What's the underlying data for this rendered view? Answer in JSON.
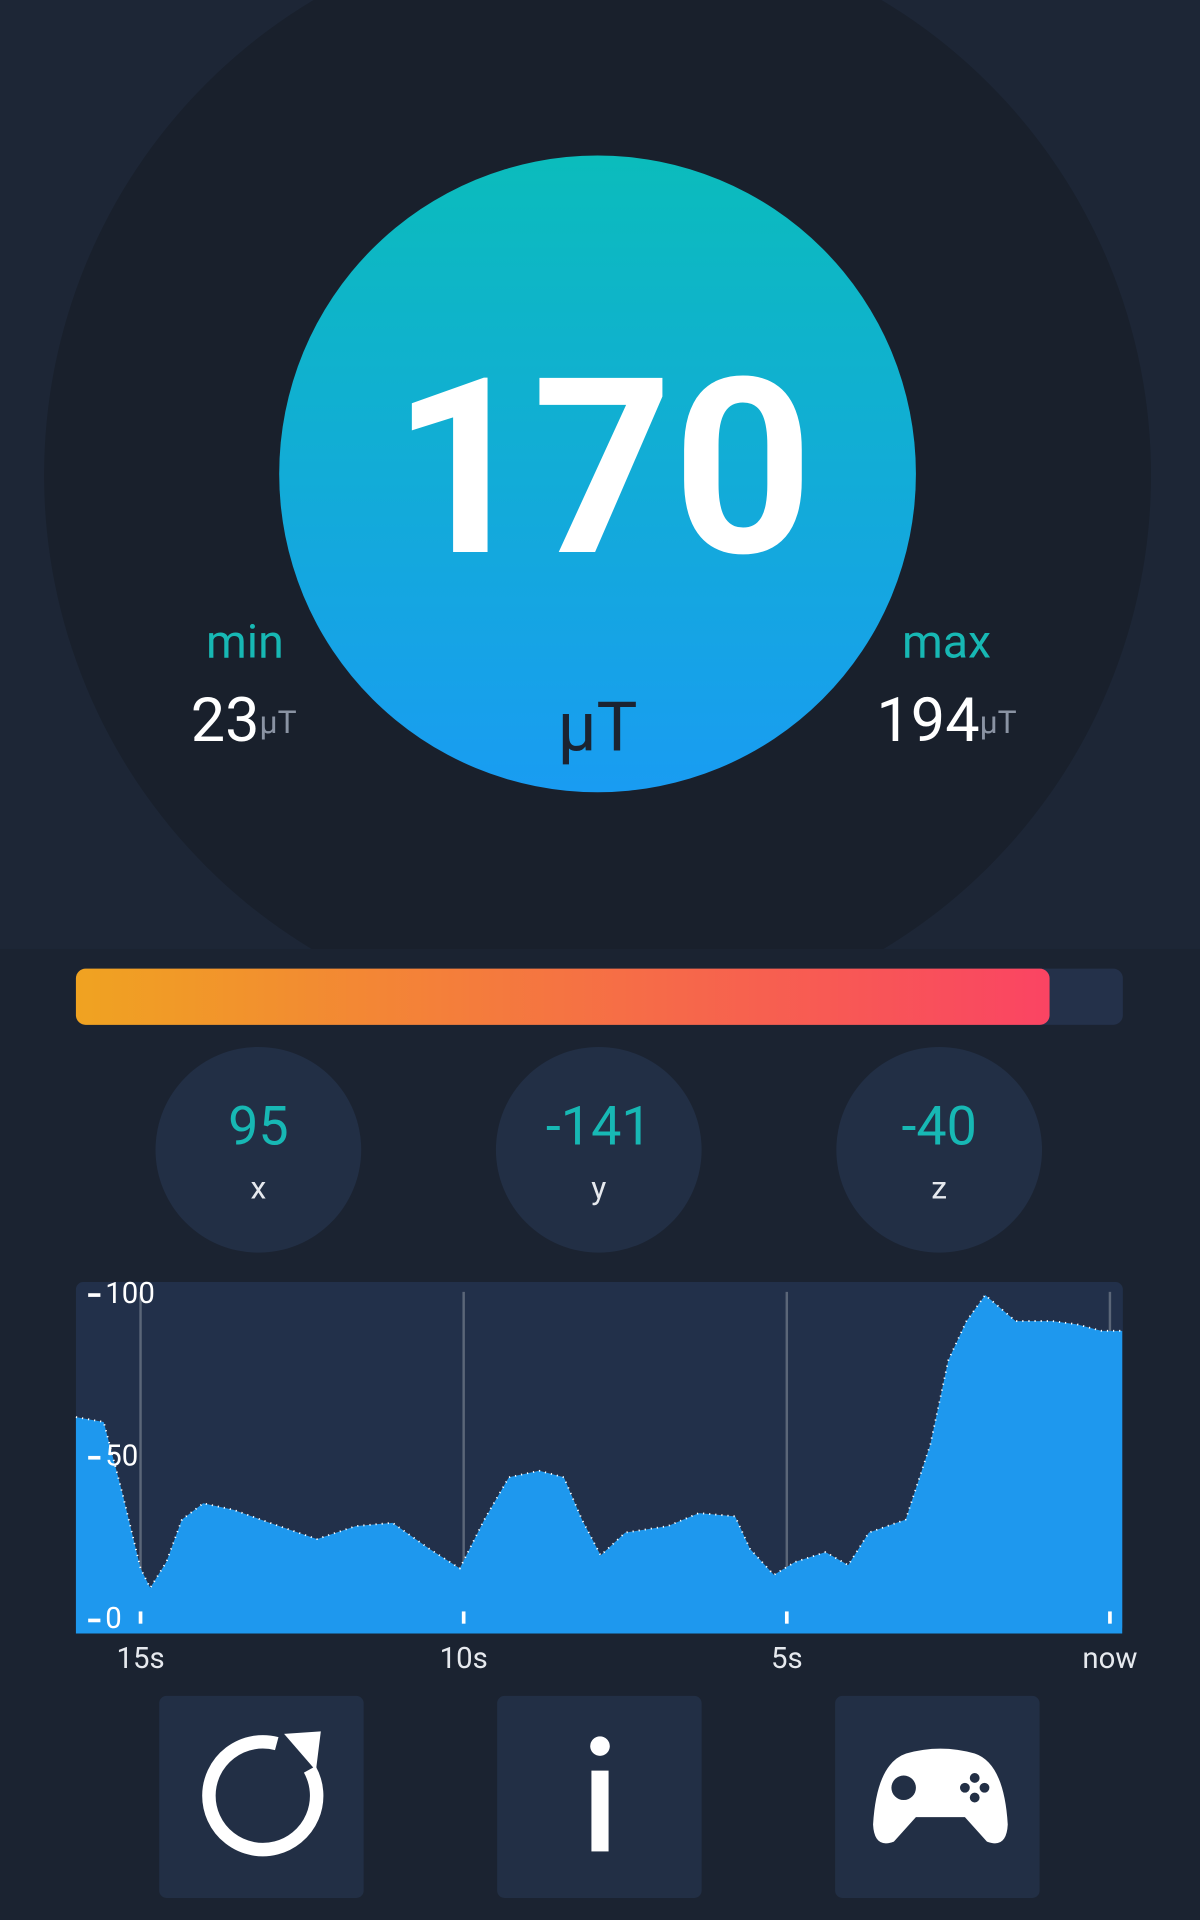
{
  "reading": {
    "value": 170,
    "unit": "μT"
  },
  "min": {
    "label": "min",
    "value": 23,
    "unit": "μT"
  },
  "max": {
    "label": "max",
    "value": 194,
    "unit": "μT"
  },
  "level_bar": {
    "percent": 93
  },
  "components": [
    {
      "value": 95,
      "label": "x"
    },
    {
      "value": -141,
      "label": "y"
    },
    {
      "value": -40,
      "label": "z"
    }
  ],
  "chart_data": {
    "type": "area",
    "color": "#1e98ee",
    "x": [
      -16,
      -15.57,
      -15.28,
      -15,
      -14.85,
      -14.6,
      -14.36,
      -14.03,
      -13.56,
      -13,
      -12.27,
      -11.67,
      -11.1,
      -10.53,
      -10.06,
      -9.68,
      -9.3,
      -8.83,
      -8.45,
      -8.17,
      -7.88,
      -7.5,
      -6.84,
      -6.36,
      -5.8,
      -5.57,
      -5.2,
      -4.87,
      -4.4,
      -4.05,
      -3.73,
      -3.16,
      -2.78,
      -2.5,
      -2.22,
      -1.93,
      -1.46,
      -0.89,
      -0.51,
      -0.13,
      0.19
    ],
    "values": [
      62.5,
      61,
      39,
      16,
      10,
      18,
      31,
      36,
      34,
      30,
      25,
      29,
      30,
      22,
      16,
      31,
      44,
      46,
      44,
      31,
      20,
      27,
      29,
      33,
      32,
      22,
      14,
      18,
      21,
      17,
      27,
      31,
      54,
      80,
      92,
      100,
      92,
      92,
      91,
      89,
      89
    ],
    "xlim": [
      -16,
      0.2
    ],
    "ylim": [
      -4,
      104
    ],
    "xticks": [
      {
        "value": -15,
        "label": "15s"
      },
      {
        "value": -10,
        "label": "10s"
      },
      {
        "value": -5,
        "label": "5s"
      },
      {
        "value": 0,
        "label": "now"
      }
    ],
    "yticks": [
      0,
      50,
      100
    ],
    "grid": true
  }
}
